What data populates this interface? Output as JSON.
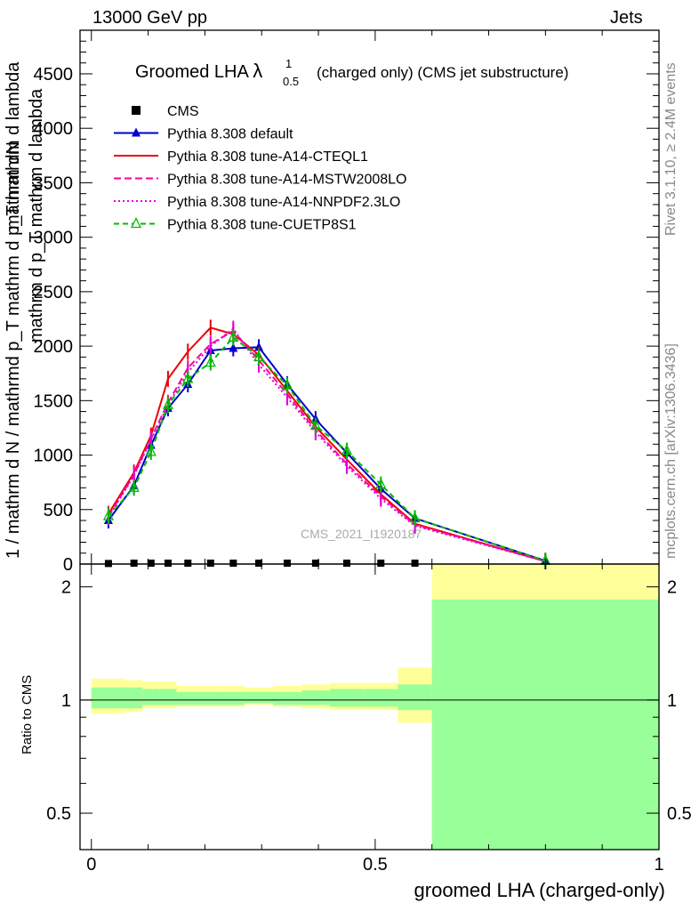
{
  "header": {
    "left": "13000 GeV pp",
    "right": "Jets"
  },
  "side_labels": {
    "rivet": "Rivet 3.1.10, ≥ 2.4M events",
    "mcplots": "mcplots.cern.ch [arXiv:1306.3436]"
  },
  "watermark": "CMS_2021_I1920187",
  "chart_data": {
    "type": "line",
    "title_main": "Groomed LHA",
    "title_lambda": "λ",
    "title_sup": "1",
    "title_sub": "0.5",
    "title_rest": "(charged only) (CMS jet substructure)",
    "xlabel": "groomed LHA (charged-only)",
    "ylabel_top_num": "mathrm dN",
    "ylabel_top_den": "mathrm d p_T mathrm d lambda",
    "ylabel_full": "1 / mathrm d N / mathrmd p_T mathrm d p_T mathrm d lambda",
    "ylabel_ratio": "Ratio to CMS",
    "xlim": [
      -0.02,
      1.0
    ],
    "ylim_main": [
      0,
      4900
    ],
    "ylim_ratio_log": [
      0.4,
      2.3
    ],
    "x_ticks": [
      {
        "v": 0,
        "label": "0"
      },
      {
        "v": 0.5,
        "label": "0.5"
      },
      {
        "v": 1,
        "label": "1"
      }
    ],
    "y_ticks_main": [
      {
        "v": 0,
        "label": "0"
      },
      {
        "v": 500,
        "label": "500"
      },
      {
        "v": 1000,
        "label": "1000"
      },
      {
        "v": 1500,
        "label": "1500"
      },
      {
        "v": 2000,
        "label": "2000"
      },
      {
        "v": 2500,
        "label": "2500"
      },
      {
        "v": 3000,
        "label": "3000"
      },
      {
        "v": 3500,
        "label": "3500"
      },
      {
        "v": 4000,
        "label": "4000"
      },
      {
        "v": 4500,
        "label": "4500"
      }
    ],
    "y_ticks_ratio": [
      {
        "v": 0.5,
        "label": "0.5"
      },
      {
        "v": 1,
        "label": "1"
      },
      {
        "v": 2,
        "label": "2"
      }
    ],
    "bins": [
      0.0,
      0.06,
      0.09,
      0.12,
      0.15,
      0.19,
      0.23,
      0.27,
      0.32,
      0.37,
      0.42,
      0.48,
      0.54,
      0.6,
      1.0
    ],
    "x": [
      0.03,
      0.075,
      0.105,
      0.135,
      0.17,
      0.21,
      0.25,
      0.295,
      0.345,
      0.395,
      0.45,
      0.51,
      0.57,
      0.8
    ],
    "cms": [
      5,
      8,
      8,
      8,
      8,
      8,
      8,
      8,
      8,
      8,
      8,
      8,
      8,
      0
    ],
    "ratio_bands": {
      "yellow": [
        [
          0.92,
          1.14
        ],
        [
          0.93,
          1.13
        ],
        [
          0.95,
          1.12
        ],
        [
          0.95,
          1.12
        ],
        [
          0.96,
          1.09
        ],
        [
          0.96,
          1.09
        ],
        [
          0.96,
          1.09
        ],
        [
          0.97,
          1.08
        ],
        [
          0.96,
          1.09
        ],
        [
          0.95,
          1.1
        ],
        [
          0.94,
          1.11
        ],
        [
          0.94,
          1.11
        ],
        [
          0.87,
          1.22
        ],
        [
          0.35,
          2.35
        ]
      ],
      "green": [
        [
          0.95,
          1.08
        ],
        [
          0.95,
          1.08
        ],
        [
          0.97,
          1.07
        ],
        [
          0.97,
          1.07
        ],
        [
          0.97,
          1.05
        ],
        [
          0.97,
          1.05
        ],
        [
          0.97,
          1.05
        ],
        [
          0.98,
          1.05
        ],
        [
          0.97,
          1.05
        ],
        [
          0.97,
          1.06
        ],
        [
          0.96,
          1.07
        ],
        [
          0.96,
          1.07
        ],
        [
          0.94,
          1.1
        ],
        [
          0.35,
          1.85
        ]
      ]
    },
    "series": [
      {
        "name": "CMS",
        "color": "#000000",
        "style": "marker",
        "marker": "square",
        "values": [
          5,
          8,
          8,
          8,
          8,
          8,
          8,
          8,
          8,
          8,
          8,
          8,
          8,
          0
        ]
      },
      {
        "name": "Pythia 8.308 default",
        "color": "#0000cc",
        "style": "solid",
        "marker": "triangle-filled",
        "values": [
          400,
          720,
          1090,
          1430,
          1650,
          1960,
          1980,
          1990,
          1650,
          1330,
          1020,
          690,
          420,
          30
        ]
      },
      {
        "name": "Pythia 8.308 tune-A14-CTEQL1",
        "color": "#ee0000",
        "style": "solid",
        "marker": "none",
        "values": [
          460,
          840,
          1180,
          1700,
          1950,
          2170,
          2110,
          1920,
          1590,
          1260,
          960,
          640,
          370,
          25
        ]
      },
      {
        "name": "Pythia 8.308 tune-A14-MSTW2008LO",
        "color": "#ff0099",
        "style": "dashed",
        "marker": "none",
        "values": [
          440,
          820,
          1150,
          1480,
          1800,
          2020,
          2140,
          1870,
          1560,
          1230,
          920,
          620,
          360,
          25
        ]
      },
      {
        "name": "Pythia 8.308 tune-A14-NNPDF2.3LO",
        "color": "#dd00dd",
        "style": "dotted",
        "marker": "none",
        "values": [
          430,
          810,
          1140,
          1460,
          1760,
          2000,
          2160,
          1830,
          1530,
          1210,
          900,
          600,
          350,
          25
        ]
      },
      {
        "name": "Pythia 8.308 tune-CUETP8S1",
        "color": "#00bb00",
        "style": "dashed",
        "marker": "triangle-open",
        "values": [
          440,
          700,
          1030,
          1460,
          1700,
          1850,
          2080,
          1900,
          1640,
          1270,
          1040,
          730,
          420,
          30
        ]
      }
    ]
  }
}
